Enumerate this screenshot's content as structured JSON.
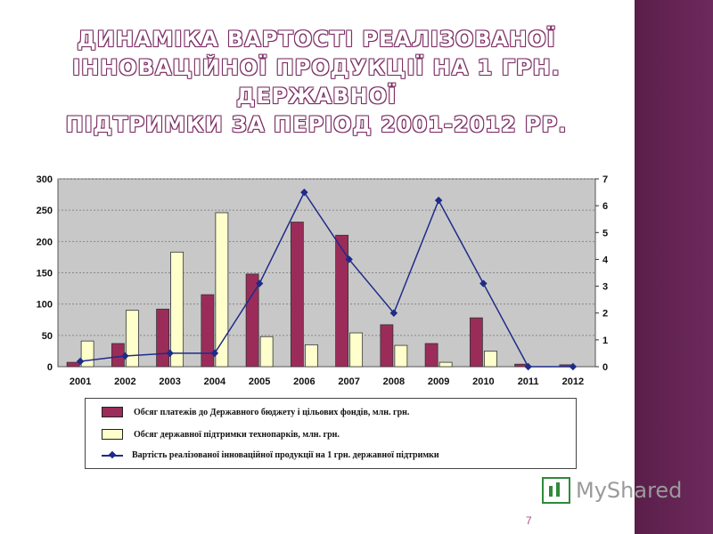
{
  "title_lines": [
    "ДИНАМІКА ВАРТОСТІ РЕАЛІЗОВАНОЇ",
    "ІННОВАЦІЙНОЇ ПРОДУКЦІЇ НА 1 ГРН. ДЕРЖАВНОЇ",
    "ПІДТРИМКИ ЗА ПЕРІОД 2001-2012 РР."
  ],
  "chart_data": {
    "type": "bar",
    "categories": [
      "2001",
      "2002",
      "2003",
      "2004",
      "2005",
      "2006",
      "2007",
      "2008",
      "2009",
      "2010",
      "2011",
      "2012"
    ],
    "series": [
      {
        "name": "Обсяг платежів до Державного бюджету і цільових фондів, млн. грн.",
        "type": "bar",
        "axis": "left",
        "color": "#9b2c5a",
        "values": [
          7,
          37,
          92,
          115,
          148,
          231,
          210,
          67,
          37,
          78,
          4,
          3
        ]
      },
      {
        "name": "Обсяг державної підтримки технопарків, млн. грн.",
        "type": "bar",
        "axis": "left",
        "color": "#ffffcc",
        "values": [
          41,
          90,
          183,
          246,
          48,
          35,
          54,
          34,
          7,
          25,
          0,
          0
        ]
      },
      {
        "name": "Вартість реалізованої інноваційної продукції на 1 грн. державної підтримки",
        "type": "line",
        "axis": "right",
        "color": "#1f2b8a",
        "values": [
          0.2,
          0.4,
          0.5,
          0.5,
          3.1,
          6.5,
          4.0,
          2.0,
          6.2,
          3.1,
          0.0,
          0.0
        ]
      }
    ],
    "y_left": {
      "min": 0,
      "max": 300,
      "ticks": [
        "0",
        "50",
        "100",
        "150",
        "200",
        "250",
        "300"
      ]
    },
    "y_right": {
      "min": 0,
      "max": 7,
      "ticks": [
        "0",
        "1",
        "2",
        "3",
        "4",
        "5",
        "6",
        "7"
      ]
    },
    "grid": true,
    "legend_position": "bottom"
  },
  "watermark": "MyShared",
  "page_number": "7"
}
